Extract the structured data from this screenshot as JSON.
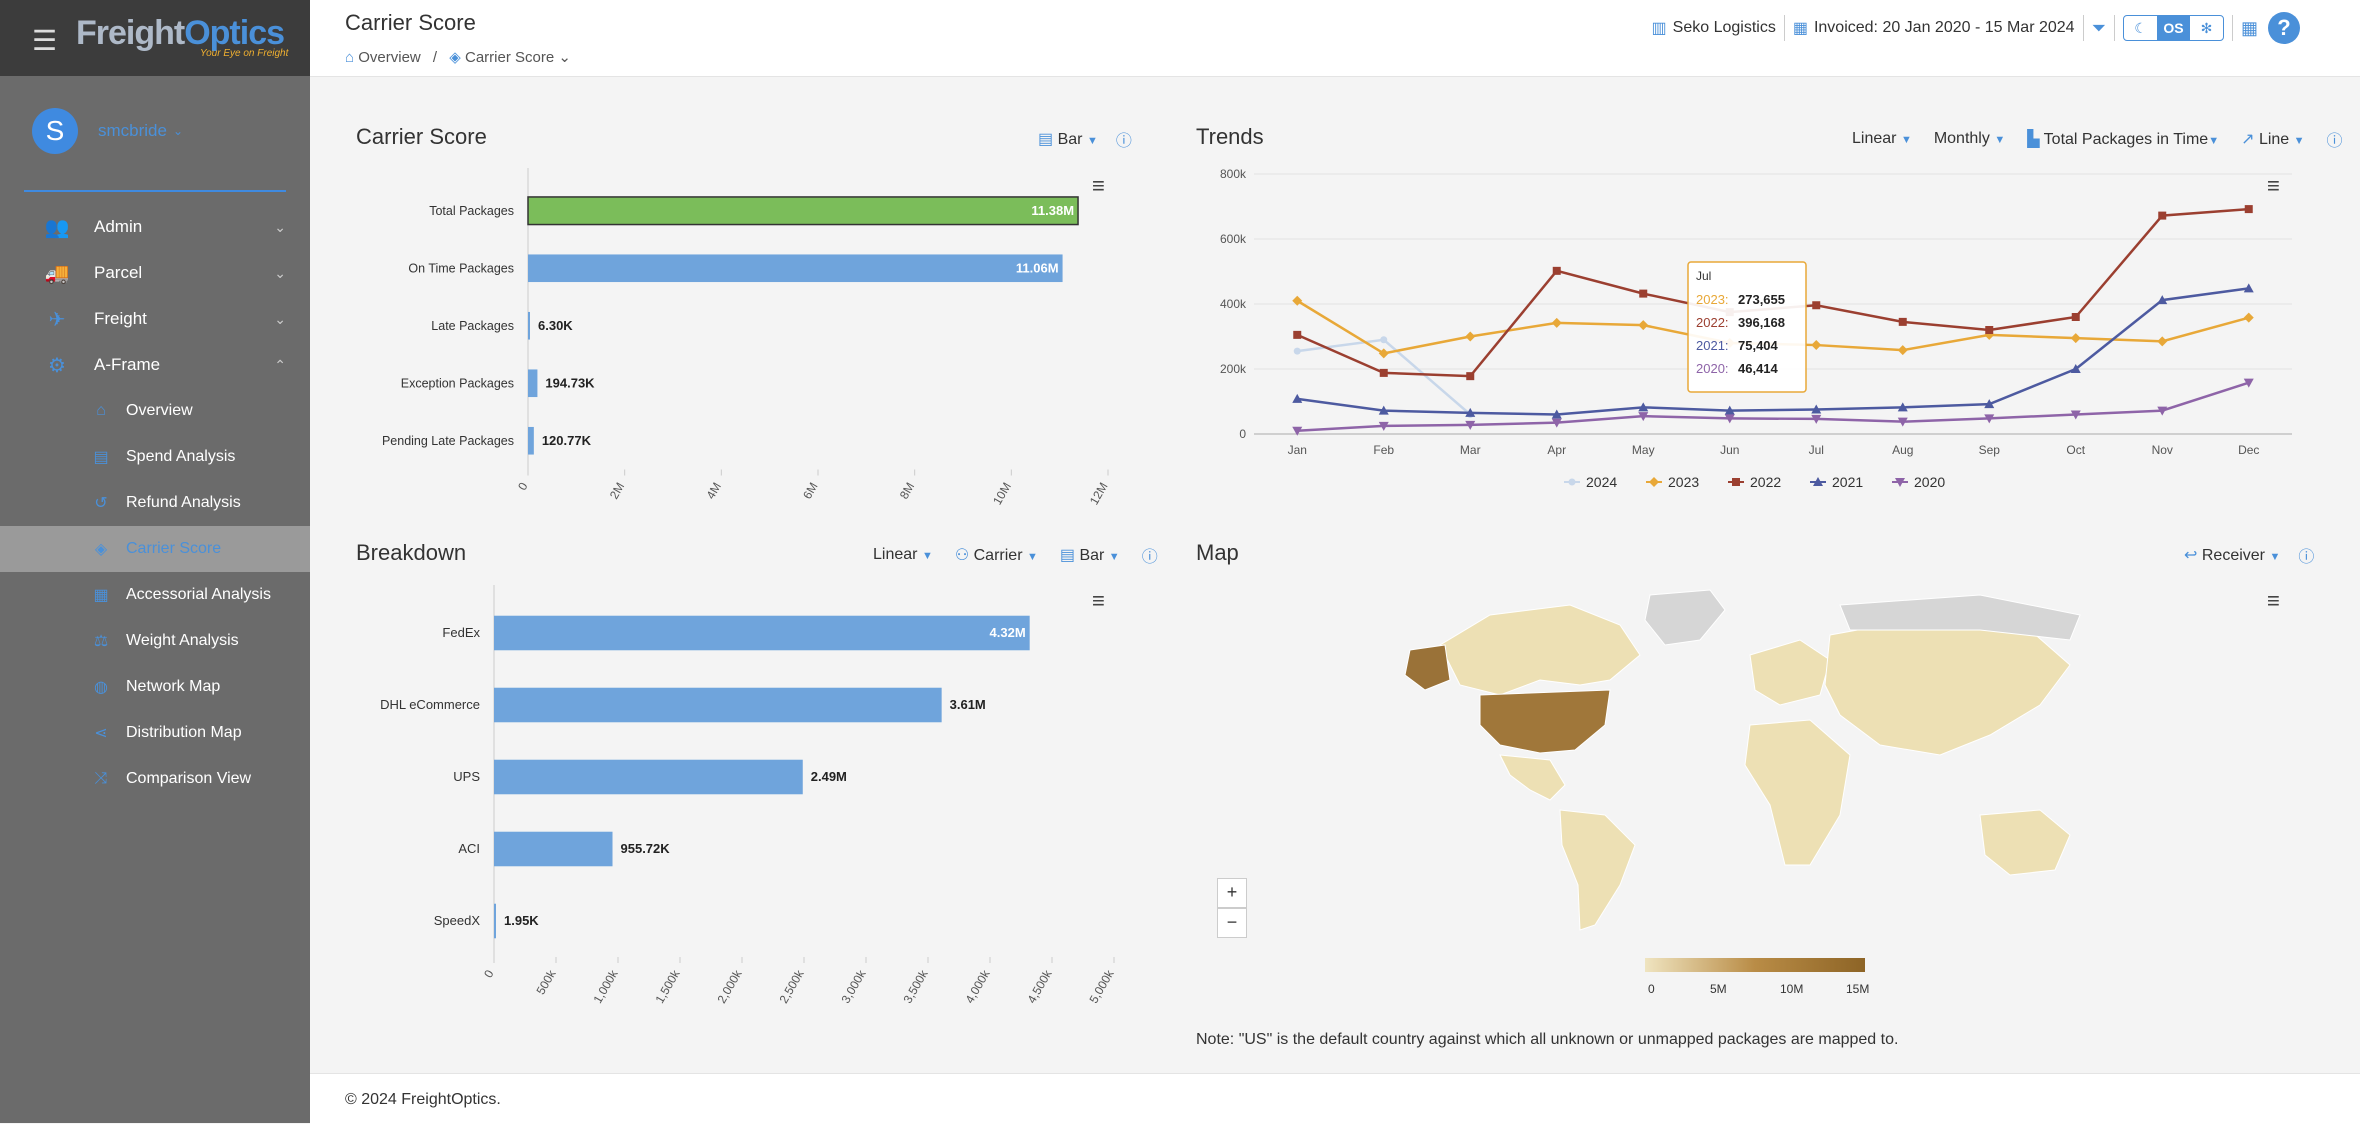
{
  "brand": {
    "name_a": "Freight",
    "name_b": "Optics",
    "tagline": "Your Eye on Freight"
  },
  "user": {
    "initial": "S",
    "name": "smcbride"
  },
  "menu": [
    {
      "label": "Admin",
      "icon": "users-gear-icon"
    },
    {
      "label": "Parcel",
      "icon": "truck-icon"
    },
    {
      "label": "Freight",
      "icon": "plane-icon"
    },
    {
      "label": "A-Frame",
      "icon": "network-icon"
    }
  ],
  "submenu": [
    {
      "label": "Overview"
    },
    {
      "label": "Spend Analysis"
    },
    {
      "label": "Refund Analysis"
    },
    {
      "label": "Carrier Score"
    },
    {
      "label": "Accessorial Analysis"
    },
    {
      "label": "Weight Analysis"
    },
    {
      "label": "Network Map"
    },
    {
      "label": "Distribution Map"
    },
    {
      "label": "Comparison View"
    }
  ],
  "header": {
    "title": "Carrier Score",
    "crumb_home": "Overview",
    "crumb_sep": "/",
    "crumb_current": "Carrier Score",
    "company": "Seko Logistics",
    "invoiced": "Invoiced: 20 Jan 2020 - 15 Mar 2024",
    "toggle_os": "OS"
  },
  "panels": {
    "carrier_score": {
      "title": "Carrier Score",
      "ctrl_type": "Bar"
    },
    "trends": {
      "title": "Trends",
      "ctrl_scale": "Linear",
      "ctrl_period": "Monthly",
      "ctrl_metric": "Total Packages in Time",
      "ctrl_type": "Line"
    },
    "breakdown": {
      "title": "Breakdown",
      "ctrl_scale": "Linear",
      "ctrl_group": "Carrier",
      "ctrl_type": "Bar"
    },
    "map": {
      "title": "Map",
      "ctrl_mode": "Receiver",
      "legend_ticks": [
        "0",
        "5M",
        "10M",
        "15M"
      ],
      "zoom_in": "+",
      "zoom_out": "−"
    }
  },
  "note": "Note: \"US\" is the default country against which all unknown or unmapped packages are mapped to.",
  "footer": "© 2024 FreightOptics.",
  "chart_data": [
    {
      "type": "bar",
      "orientation": "horizontal",
      "categories": [
        "Total Packages",
        "On Time Packages",
        "Late Packages",
        "Exception Packages",
        "Pending Late Packages"
      ],
      "values": [
        11380000,
        11060000,
        6300,
        194730,
        120770
      ],
      "labels": [
        "11.38M",
        "11.06M",
        "6.30K",
        "194.73K",
        "120.77K"
      ],
      "xlim": [
        0,
        12000000
      ],
      "ticks": [
        "0",
        "2M",
        "4M",
        "6M",
        "8M",
        "10M",
        "12M"
      ],
      "colors": [
        "#7bbd5a",
        "#6fa4dc",
        "#6fa4dc",
        "#6fa4dc",
        "#6fa4dc"
      ]
    },
    {
      "type": "line",
      "x": [
        "Jan",
        "Feb",
        "Mar",
        "Apr",
        "May",
        "Jun",
        "Jul",
        "Aug",
        "Sep",
        "Oct",
        "Nov",
        "Dec"
      ],
      "ylim": [
        0,
        800000
      ],
      "yticks": [
        "0",
        "200k",
        "400k",
        "600k",
        "800k"
      ],
      "series": [
        {
          "name": "2024",
          "color": "#c8d7ea",
          "values": [
            255000,
            290000,
            60000,
            null,
            null,
            null,
            null,
            null,
            null,
            null,
            null,
            null
          ]
        },
        {
          "name": "2023",
          "color": "#e8a838",
          "values": [
            410000,
            248000,
            300000,
            342000,
            335000,
            280000,
            273655,
            258000,
            305000,
            295000,
            285000,
            358000
          ]
        },
        {
          "name": "2022",
          "color": "#9b3f30",
          "values": [
            305000,
            188000,
            178000,
            502000,
            432000,
            375000,
            396168,
            345000,
            320000,
            360000,
            672000,
            692000
          ]
        },
        {
          "name": "2021",
          "color": "#4d5aa0",
          "values": [
            108000,
            72000,
            65000,
            60000,
            82000,
            72000,
            75404,
            82000,
            92000,
            200000,
            412000,
            448000
          ]
        },
        {
          "name": "2020",
          "color": "#8e64a8",
          "values": [
            10000,
            25000,
            28000,
            35000,
            55000,
            48000,
            46414,
            38000,
            48000,
            60000,
            72000,
            158000
          ]
        }
      ],
      "tooltip": {
        "title": "Jul",
        "rows": [
          {
            "name": "2023",
            "value": "273,655"
          },
          {
            "name": "2022",
            "value": "396,168"
          },
          {
            "name": "2021",
            "value": "75,404"
          },
          {
            "name": "2020",
            "value": "46,414"
          }
        ]
      }
    },
    {
      "type": "bar",
      "orientation": "horizontal",
      "categories": [
        "FedEx",
        "DHL eCommerce",
        "UPS",
        "ACI",
        "SpeedX"
      ],
      "values": [
        4320000,
        3610000,
        2490000,
        955720,
        1950
      ],
      "labels": [
        "4.32M",
        "3.61M",
        "2.49M",
        "955.72K",
        "1.95K"
      ],
      "xlim": [
        0,
        5000000
      ],
      "ticks": [
        "0",
        "500k",
        "1,000k",
        "1,500k",
        "2,000k",
        "2,500k",
        "3,000k",
        "3,500k",
        "4,000k",
        "4,500k",
        "5,000k"
      ],
      "colors": [
        "#6fa4dc",
        "#6fa4dc",
        "#6fa4dc",
        "#6fa4dc",
        "#6fa4dc"
      ]
    }
  ]
}
